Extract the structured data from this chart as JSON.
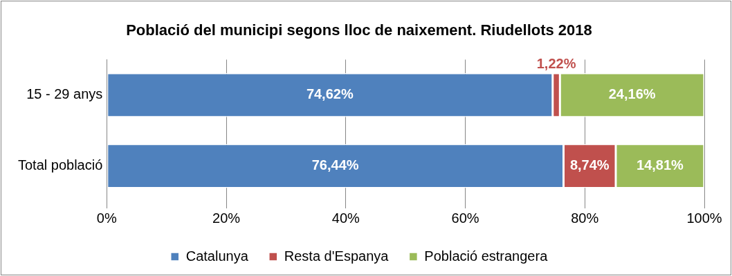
{
  "chart_data": {
    "type": "bar",
    "orientation": "horizontal",
    "stacked": true,
    "title": "Població del municipi segons lloc de naixement. Riudellots 2018",
    "categories": [
      "15 - 29 anys",
      "Total població"
    ],
    "series": [
      {
        "name": "Catalunya",
        "color": "#4f81bd",
        "values": [
          74.62,
          76.44
        ],
        "value_labels": [
          "74,62%",
          "76,44%"
        ]
      },
      {
        "name": "Resta d'Espanya",
        "color": "#c0504d",
        "values": [
          1.22,
          8.74
        ],
        "value_labels": [
          "1,22%",
          "8,74%"
        ]
      },
      {
        "name": "Població estrangera",
        "color": "#9bbb59",
        "values": [
          24.16,
          14.81
        ],
        "value_labels": [
          "24,16%",
          "14,81%"
        ]
      }
    ],
    "xlim": [
      0,
      100
    ],
    "xticks": [
      {
        "value": 0,
        "label": "0%"
      },
      {
        "value": 20,
        "label": "20%"
      },
      {
        "value": 40,
        "label": "40%"
      },
      {
        "value": 60,
        "label": "60%"
      },
      {
        "value": 80,
        "label": "80%"
      },
      {
        "value": 100,
        "label": "100%"
      }
    ],
    "grid": "x",
    "legend": "bottom"
  }
}
